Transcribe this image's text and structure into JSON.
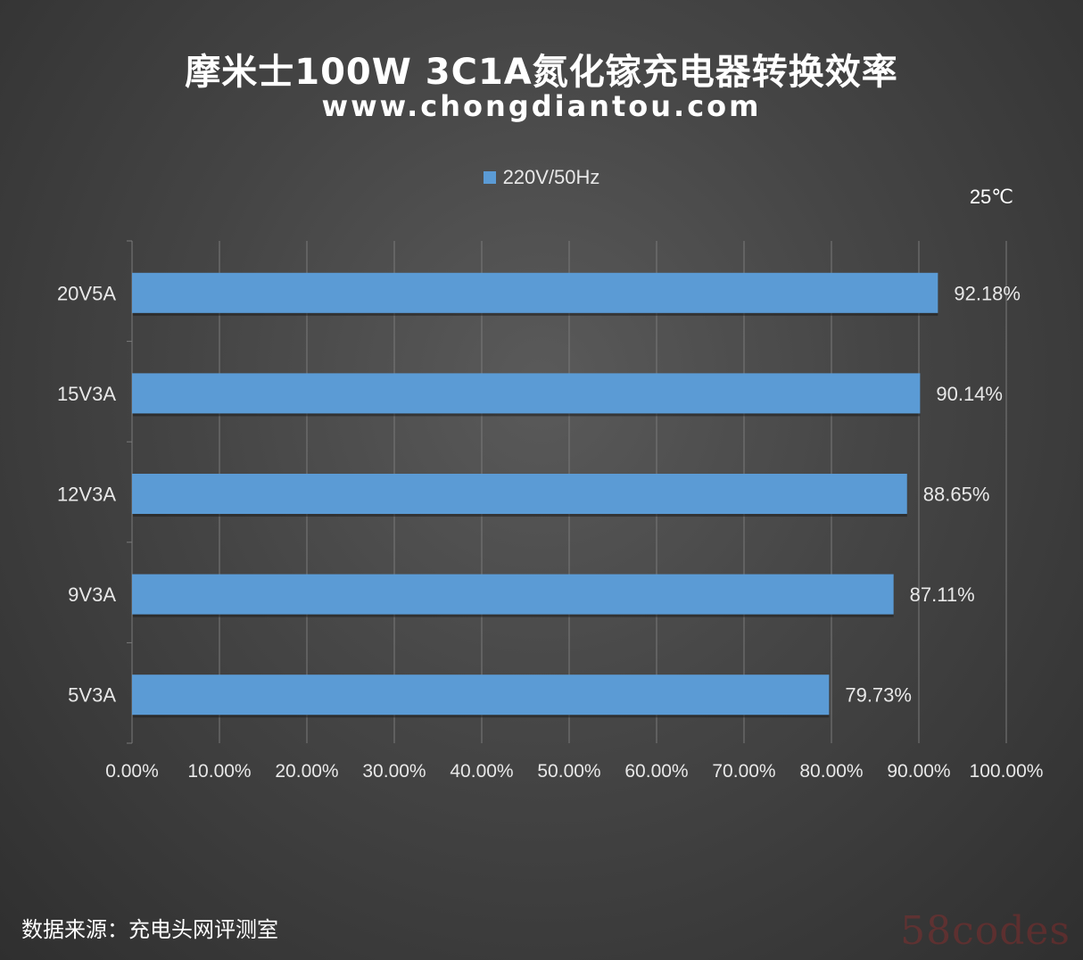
{
  "header": {
    "title": "摩米士100W 3C1A氮化镓充电器转换效率",
    "subtitle": "www.chongdiantou.com"
  },
  "temperature_label": "25℃",
  "footer": {
    "source": "数据来源：充电头网评测室",
    "watermark": "58codes"
  },
  "colors": {
    "bar": "#5b9bd5",
    "grid": "#7a7a7a",
    "text": "#e8e8e8"
  },
  "chart_data": {
    "type": "bar",
    "orientation": "horizontal",
    "categories": [
      "20V5A",
      "15V3A",
      "12V3A",
      "9V3A",
      "5V3A"
    ],
    "series": [
      {
        "name": "220V/50Hz",
        "values": [
          92.18,
          90.14,
          88.65,
          87.11,
          79.73
        ],
        "labels": [
          "92.18%",
          "90.14%",
          "88.65%",
          "87.11%",
          "79.73%"
        ]
      }
    ],
    "xlim": [
      0,
      100
    ],
    "xticks": [
      "0.00%",
      "10.00%",
      "20.00%",
      "30.00%",
      "40.00%",
      "50.00%",
      "60.00%",
      "70.00%",
      "80.00%",
      "90.00%",
      "100.00%"
    ],
    "grid": "vertical",
    "legend_position": "top"
  }
}
